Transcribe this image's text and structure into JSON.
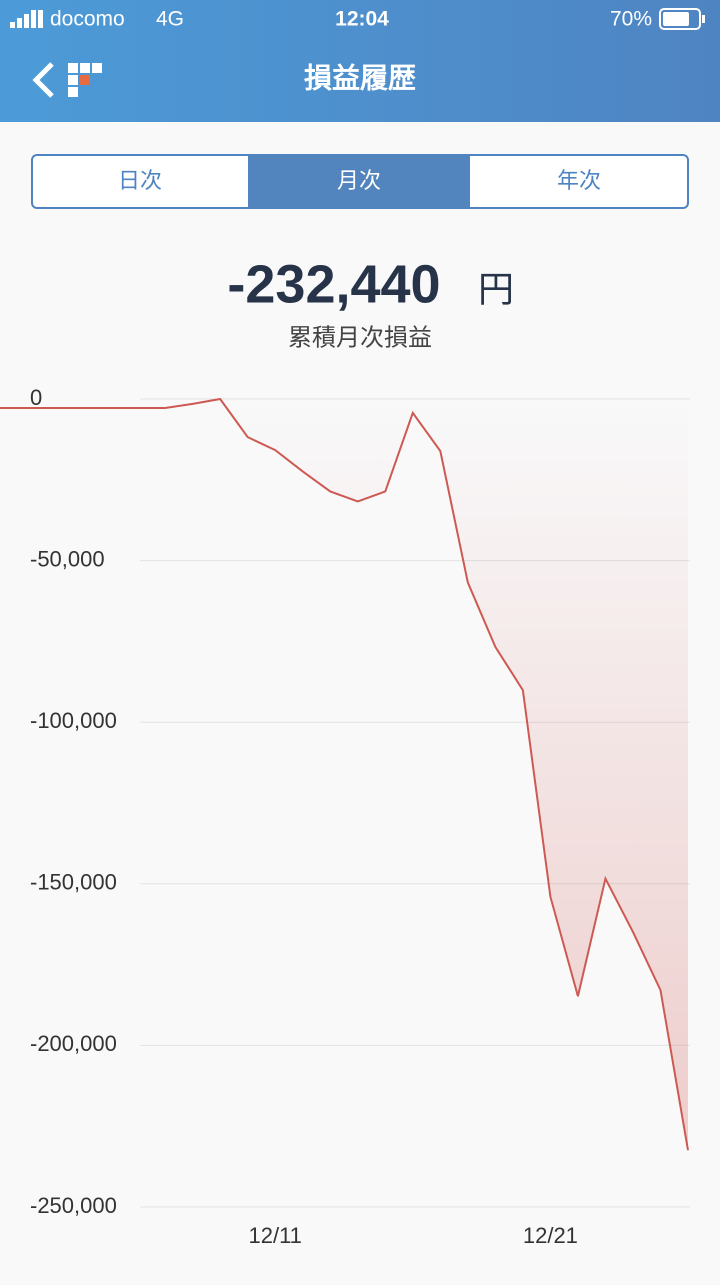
{
  "status_bar": {
    "carrier": "docomo",
    "network": "4G",
    "time": "12:04",
    "battery": "70%"
  },
  "header": {
    "title": "損益履歴"
  },
  "tabs": {
    "items": [
      "日次",
      "月次",
      "年次"
    ],
    "active": 1
  },
  "summary": {
    "value": "-232,440",
    "unit": "円",
    "label": "累積月次損益"
  },
  "chart_data": {
    "type": "line",
    "color": "#cd5a52",
    "x": [
      1,
      2,
      3,
      4,
      5,
      6,
      7,
      8,
      9,
      10,
      11,
      12,
      13,
      14,
      15,
      16,
      17,
      18,
      19,
      20,
      21,
      22,
      23,
      24,
      25,
      26
    ],
    "values": [
      -2800,
      -2800,
      -2800,
      -2800,
      -2800,
      -2800,
      -2800,
      -1500,
      0,
      -11800,
      -15800,
      -22400,
      -28600,
      -31700,
      -28600,
      -4300,
      -16100,
      -56800,
      -76700,
      -90100,
      -154000,
      -184800,
      -148400,
      -164900,
      -182900,
      -232440
    ],
    "xlim": [
      1,
      26
    ],
    "xticks": [
      {
        "value": 11,
        "label": "12/11"
      },
      {
        "value": 21,
        "label": "12/21"
      }
    ],
    "ylim": [
      -250000,
      0
    ],
    "yticks": [
      0,
      {
        "value": -50000,
        "label": "-50,000"
      },
      {
        "value": -100000,
        "label": "-100,000"
      },
      {
        "value": -150000,
        "label": "-150,000"
      },
      {
        "value": -200000,
        "label": "-200,000"
      },
      {
        "value": -250000,
        "label": "-250,000"
      }
    ],
    "grid": true
  }
}
